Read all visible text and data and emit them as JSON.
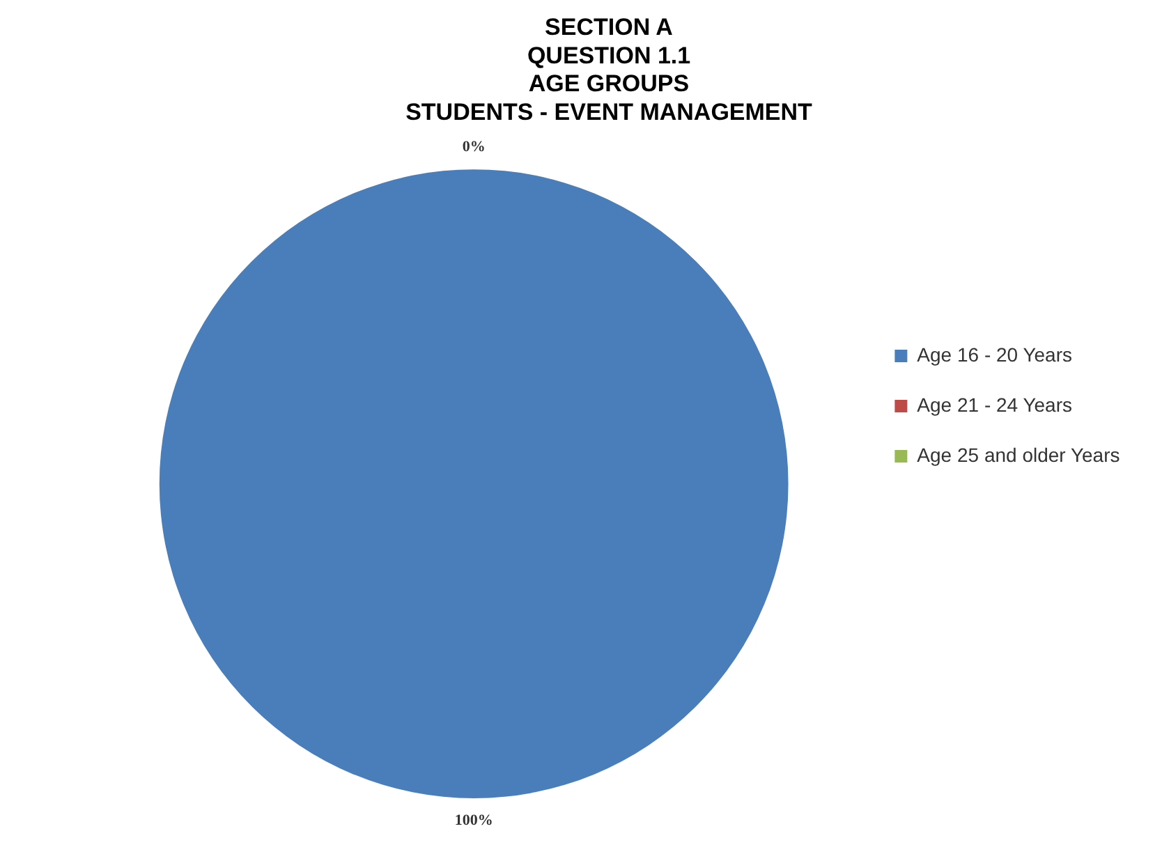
{
  "chart_data": {
    "type": "pie",
    "title": "SECTION A\nQUESTION 1.1\nAGE GROUPS\nSTUDENTS - EVENT MANAGEMENT",
    "categories": [
      "Age 16 - 20 Years",
      "Age 21 - 24 Years",
      "Age 25 and older Years"
    ],
    "values": [
      100,
      0,
      0
    ],
    "colors": [
      "#4a7ebb",
      "#be4b48",
      "#98b954"
    ],
    "value_labels": [
      "100%",
      "0%",
      null
    ],
    "legend": "right"
  }
}
